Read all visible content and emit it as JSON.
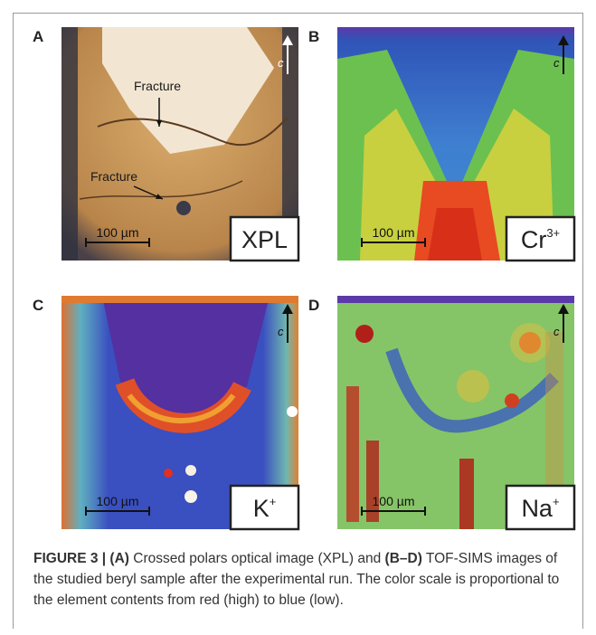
{
  "panels": [
    {
      "letter": "A",
      "label": "XPL",
      "scale_bar": "100 µm",
      "axis": "c",
      "annotations": [
        "Fracture",
        "Fracture"
      ]
    },
    {
      "letter": "B",
      "label": "Cr",
      "label_sup": "3+",
      "scale_bar": "100 µm",
      "axis": "c"
    },
    {
      "letter": "C",
      "label": "K",
      "label_sup": "+",
      "scale_bar": "100 µm",
      "axis": "c"
    },
    {
      "letter": "D",
      "label": "Na",
      "label_sup": "+",
      "scale_bar": "100 µm",
      "axis": "c"
    }
  ],
  "caption": [
    {
      "text": "FIGURE 3 | (A)",
      "bold": true
    },
    {
      "text": " Crossed polars optical image (XPL) and ",
      "bold": false
    },
    {
      "text": "(B–D)",
      "bold": true
    },
    {
      "text": " TOF-SIMS images of the studied beryl sample after the experimental run. The color scale is proportional to the element contents from red (high) to blue (low).",
      "bold": false
    }
  ]
}
